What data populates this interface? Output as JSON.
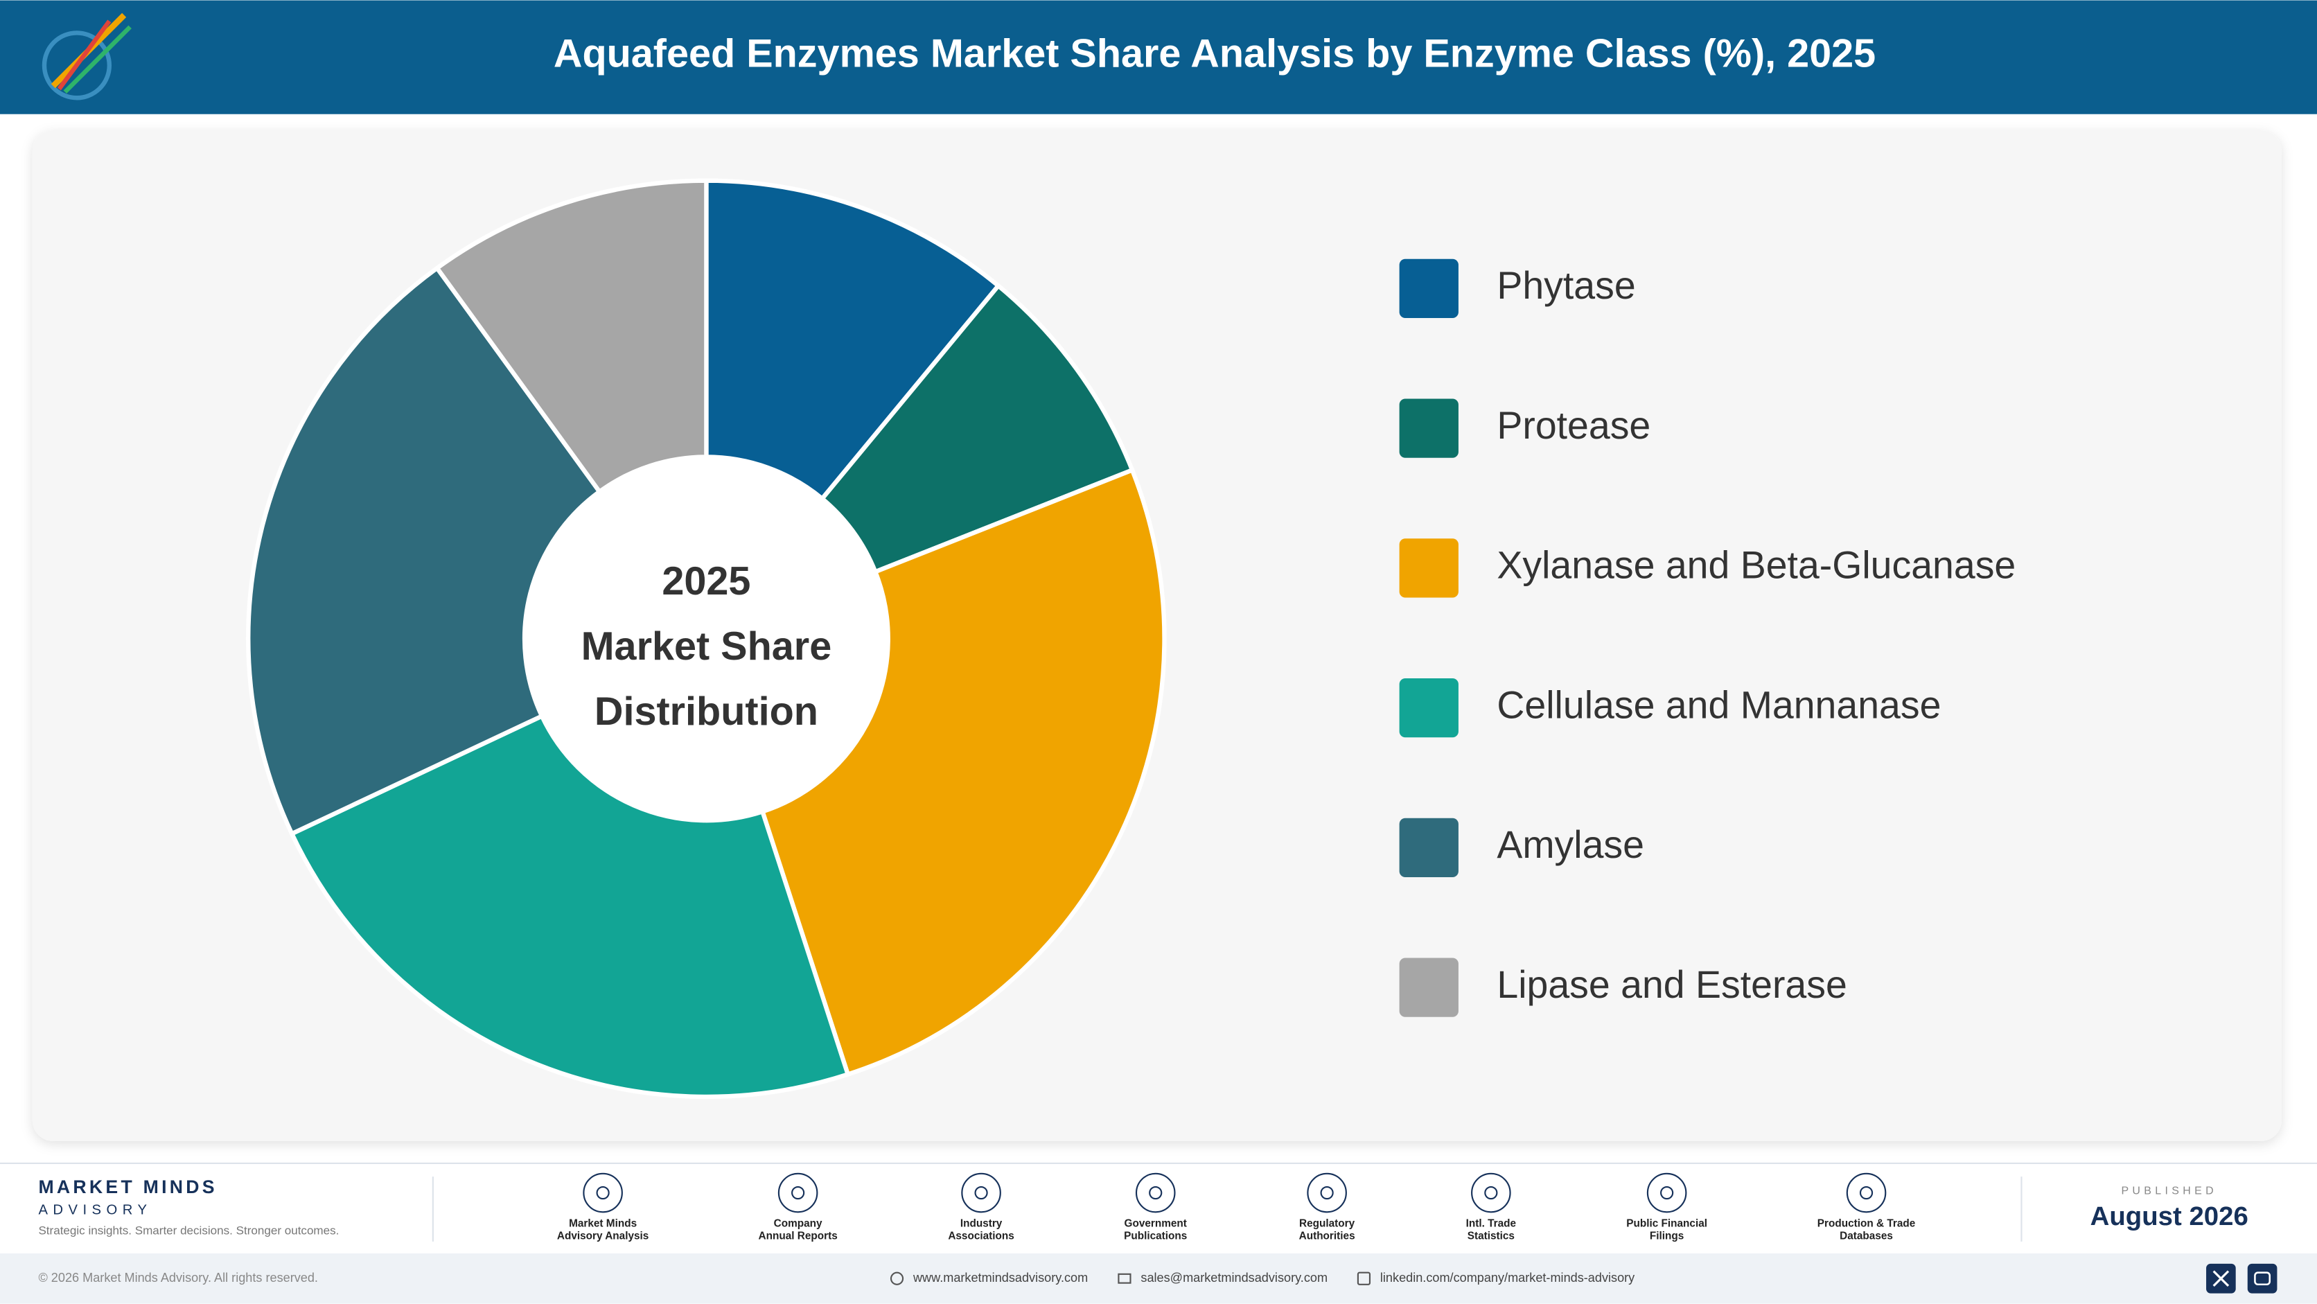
{
  "header": {
    "title": "Aquafeed Enzymes Market Share Analysis by Enzyme Class (%), 2025"
  },
  "chart_data": {
    "type": "pie",
    "center_label": [
      "2025",
      "Market Share",
      "Distribution"
    ],
    "categories": [
      "Phytase",
      "Protease",
      "Xylanase and Beta-Glucanase",
      "Cellulase and Mannanase",
      "Amylase",
      "Lipase and Esterase"
    ],
    "values": [
      11,
      8,
      26,
      23,
      22,
      10
    ],
    "colors": [
      "#075f94",
      "#0d7168",
      "#f0a400",
      "#12a595",
      "#2f6b7c",
      "#a6a6a6"
    ],
    "legend": "right"
  },
  "footer": {
    "brand": "MARKET MINDS",
    "brand_sub": "ADVISORY",
    "tagline": "Strategic insights. Smarter decisions. Stronger outcomes.",
    "sources": [
      [
        "Market Minds",
        "Advisory Analysis"
      ],
      [
        "Company",
        "Annual Reports"
      ],
      [
        "Industry",
        "Associations"
      ],
      [
        "Government",
        "Publications"
      ],
      [
        "Regulatory",
        "Authorities"
      ],
      [
        "Intl. Trade",
        "Statistics"
      ],
      [
        "Public Financial",
        "Filings"
      ],
      [
        "Production & Trade",
        "Databases"
      ]
    ],
    "published_label": "PUBLISHED",
    "published_date": "August 2026",
    "copyright": "© 2026 Market Minds Advisory. All rights reserved.",
    "website": "www.marketmindsadvisory.com",
    "email": "sales@marketmindsadvisory.com",
    "linkedin": "linkedin.com/company/market-minds-advisory"
  }
}
